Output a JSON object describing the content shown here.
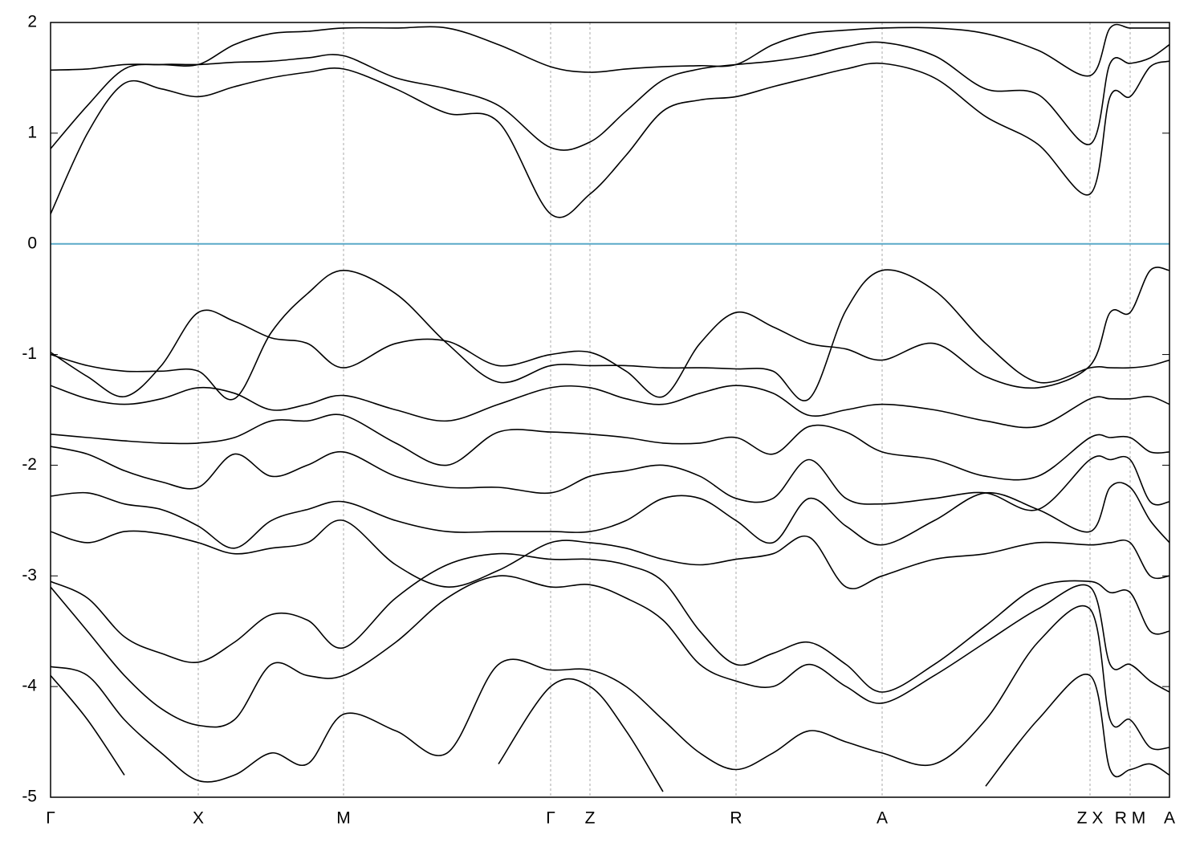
{
  "chart_data": {
    "type": "line",
    "x": [
      0,
      46,
      92,
      138,
      184,
      229,
      275,
      320,
      365,
      430,
      494,
      558,
      623,
      672,
      717,
      763,
      809,
      854,
      900,
      945,
      991,
      1036,
      1101,
      1165,
      1230,
      1295,
      1320,
      1345,
      1370,
      1394
    ],
    "xlim": [
      0,
      1394
    ],
    "xticks": [
      {
        "value": 0,
        "label": "Γ"
      },
      {
        "value": 184,
        "label": "X"
      },
      {
        "value": 365,
        "label": "M"
      },
      {
        "value": 623,
        "label": "Γ"
      },
      {
        "value": 672,
        "label": "Z"
      },
      {
        "value": 854,
        "label": "R"
      },
      {
        "value": 1036,
        "label": "A"
      },
      {
        "value": 1295,
        "label": "Z X"
      },
      {
        "value": 1345,
        "label": "R M"
      },
      {
        "value": 1394,
        "label": "A"
      }
    ],
    "ylim": [
      -5,
      2
    ],
    "yticks": [
      -5,
      -4,
      -3,
      -2,
      -1,
      0,
      1,
      2
    ],
    "grid_x": true,
    "zero_line": {
      "y": 0,
      "color": "#5aa9c8"
    },
    "series": [
      {
        "color": "#000000",
        "values": [
          0.27,
          1.0,
          1.45,
          1.4,
          1.33,
          1.42,
          1.5,
          1.55,
          1.58,
          1.4,
          1.18,
          1.1,
          0.27,
          0.45,
          0.8,
          1.2,
          1.3,
          1.33,
          1.42,
          1.5,
          1.58,
          1.63,
          1.5,
          1.15,
          0.9,
          0.45,
          1.33,
          1.33,
          1.6,
          1.65
        ]
      },
      {
        "color": "#000000",
        "values": [
          0.86,
          1.25,
          1.58,
          1.62,
          1.62,
          1.64,
          1.65,
          1.68,
          1.7,
          1.5,
          1.4,
          1.25,
          0.87,
          0.92,
          1.2,
          1.48,
          1.58,
          1.62,
          1.65,
          1.7,
          1.78,
          1.82,
          1.7,
          1.4,
          1.35,
          0.9,
          1.63,
          1.63,
          1.68,
          1.8
        ]
      },
      {
        "color": "#000000",
        "values": [
          1.57,
          1.58,
          1.62,
          1.62,
          1.62,
          1.8,
          1.9,
          1.92,
          1.95,
          1.95,
          1.95,
          1.8,
          1.6,
          1.55,
          1.58,
          1.6,
          1.61,
          1.62,
          1.8,
          1.9,
          1.93,
          1.95,
          1.95,
          1.9,
          1.75,
          1.52,
          1.95,
          1.95,
          1.95,
          1.95
        ]
      },
      {
        "color": "#000000",
        "values": [
          -0.98,
          -1.2,
          -1.38,
          -1.1,
          -0.62,
          -0.7,
          -0.85,
          -0.9,
          -1.12,
          -0.9,
          -0.88,
          -1.1,
          -1.0,
          -0.98,
          -1.15,
          -1.38,
          -0.9,
          -0.62,
          -0.75,
          -0.9,
          -0.95,
          -1.05,
          -0.9,
          -1.2,
          -1.3,
          -1.1,
          -0.62,
          -0.62,
          -0.24,
          -0.24
        ]
      },
      {
        "color": "#000000",
        "values": [
          -1.0,
          -1.1,
          -1.15,
          -1.15,
          -1.15,
          -1.4,
          -0.8,
          -0.45,
          -0.24,
          -0.45,
          -0.9,
          -1.25,
          -1.1,
          -1.1,
          -1.1,
          -1.12,
          -1.12,
          -1.13,
          -1.15,
          -1.4,
          -0.6,
          -0.24,
          -0.42,
          -0.9,
          -1.25,
          -1.12,
          -1.12,
          -1.12,
          -1.1,
          -1.05
        ]
      },
      {
        "color": "#000000",
        "values": [
          -1.28,
          -1.4,
          -1.45,
          -1.4,
          -1.3,
          -1.35,
          -1.5,
          -1.45,
          -1.37,
          -1.5,
          -1.6,
          -1.45,
          -1.3,
          -1.3,
          -1.4,
          -1.45,
          -1.35,
          -1.28,
          -1.35,
          -1.55,
          -1.5,
          -1.45,
          -1.5,
          -1.6,
          -1.65,
          -1.4,
          -1.4,
          -1.4,
          -1.38,
          -1.45
        ]
      },
      {
        "color": "#000000",
        "values": [
          -1.72,
          -1.75,
          -1.78,
          -1.8,
          -1.8,
          -1.75,
          -1.6,
          -1.6,
          -1.55,
          -1.8,
          -2.0,
          -1.7,
          -1.7,
          -1.72,
          -1.75,
          -1.8,
          -1.8,
          -1.75,
          -1.9,
          -1.65,
          -1.7,
          -1.88,
          -1.95,
          -2.1,
          -2.1,
          -1.75,
          -1.75,
          -1.75,
          -1.88,
          -1.88
        ]
      },
      {
        "color": "#000000",
        "values": [
          -1.83,
          -1.9,
          -2.05,
          -2.15,
          -2.2,
          -1.9,
          -2.1,
          -2.0,
          -1.88,
          -2.1,
          -2.2,
          -2.2,
          -2.25,
          -2.1,
          -2.05,
          -2.0,
          -2.1,
          -2.3,
          -2.3,
          -1.95,
          -2.3,
          -2.35,
          -2.3,
          -2.25,
          -2.4,
          -1.95,
          -1.95,
          -1.95,
          -2.33,
          -2.33
        ]
      },
      {
        "color": "#000000",
        "values": [
          -2.28,
          -2.25,
          -2.35,
          -2.4,
          -2.55,
          -2.75,
          -2.5,
          -2.4,
          -2.33,
          -2.5,
          -2.6,
          -2.6,
          -2.6,
          -2.6,
          -2.5,
          -2.3,
          -2.3,
          -2.5,
          -2.7,
          -2.3,
          -2.55,
          -2.72,
          -2.5,
          -2.25,
          -2.4,
          -2.6,
          -2.2,
          -2.2,
          -2.5,
          -2.7
        ]
      },
      {
        "color": "#000000",
        "values": [
          -2.6,
          -2.7,
          -2.6,
          -2.62,
          -2.7,
          -2.8,
          -2.75,
          -2.7,
          -2.5,
          -2.9,
          -3.1,
          -2.95,
          -2.7,
          -2.7,
          -2.75,
          -2.85,
          -2.9,
          -2.85,
          -2.8,
          -2.65,
          -3.1,
          -3.0,
          -2.85,
          -2.8,
          -2.7,
          -2.72,
          -2.7,
          -2.7,
          -3.0,
          -3.0
        ]
      },
      {
        "color": "#000000",
        "values": [
          -3.05,
          -3.2,
          -3.55,
          -3.7,
          -3.78,
          -3.6,
          -3.35,
          -3.4,
          -3.65,
          -3.2,
          -2.9,
          -2.8,
          -2.85,
          -2.85,
          -2.9,
          -3.05,
          -3.5,
          -3.8,
          -3.7,
          -3.6,
          -3.8,
          -4.05,
          -3.8,
          -3.45,
          -3.1,
          -3.05,
          -3.15,
          -3.15,
          -3.5,
          -3.5
        ]
      },
      {
        "color": "#000000",
        "values": [
          -3.1,
          -3.5,
          -3.9,
          -4.2,
          -4.35,
          -4.3,
          -3.8,
          -3.9,
          -3.9,
          -3.6,
          -3.2,
          -3.0,
          -3.1,
          -3.08,
          -3.2,
          -3.4,
          -3.8,
          -3.95,
          -4.0,
          -3.8,
          -4.0,
          -4.15,
          -3.9,
          -3.6,
          -3.3,
          -3.1,
          -3.8,
          -3.8,
          -3.95,
          -4.05
        ]
      },
      {
        "color": "#000000",
        "values": [
          -3.82,
          -3.9,
          -4.3,
          -4.6,
          -4.85,
          -4.8,
          -4.6,
          -4.7,
          -4.25,
          -4.4,
          -4.6,
          -3.8,
          -3.85,
          -3.85,
          -4.0,
          -4.3,
          -4.6,
          -4.75,
          -4.6,
          -4.4,
          -4.5,
          -4.6,
          -4.7,
          -4.3,
          -3.6,
          -3.3,
          -4.3,
          -4.3,
          -4.55,
          -4.55
        ]
      },
      {
        "color": "#000000",
        "values": [
          -3.9,
          -4.3,
          -4.8,
          null,
          null,
          null,
          null,
          null,
          null,
          null,
          null,
          -4.7,
          -4.0,
          -4.0,
          -4.4,
          -4.95,
          null,
          null,
          null,
          null,
          null,
          null,
          null,
          -4.9,
          -4.3,
          -3.9,
          -4.75,
          -4.75,
          -4.7,
          -4.8
        ]
      }
    ]
  }
}
